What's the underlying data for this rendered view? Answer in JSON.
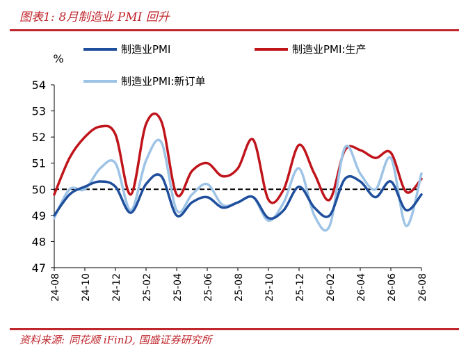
{
  "header": {
    "figure_label": "图表1:",
    "title": "8月制造业 PMI 回升"
  },
  "footer": {
    "source_label": "资料来源:",
    "source_text": "同花顺 iFinD, 国盛证券研究所"
  },
  "chart_data": {
    "type": "line",
    "unit_label": "%",
    "ylim": [
      47,
      54
    ],
    "yticks": [
      47,
      48,
      49,
      50,
      51,
      52,
      53,
      54
    ],
    "x": [
      "24-08",
      "24-09",
      "24-10",
      "24-11",
      "24-12",
      "25-01",
      "25-02",
      "25-03",
      "25-04",
      "25-05",
      "25-06",
      "25-07",
      "25-08",
      "25-09",
      "25-10",
      "25-11",
      "25-12",
      "26-01",
      "26-02",
      "26-03",
      "26-04",
      "26-05",
      "26-06",
      "26-07",
      "26-08"
    ],
    "xtick_labels": [
      "24-08",
      "24-10",
      "24-12",
      "25-02",
      "25-04",
      "25-06",
      "25-08",
      "25-10",
      "25-12",
      "26-02",
      "26-04",
      "26-06",
      "26-08"
    ],
    "reference_line": 50,
    "legend_position": "top",
    "series": [
      {
        "name": "制造业PMI",
        "color": "#1f4e9c",
        "values": [
          49.0,
          49.8,
          50.1,
          50.3,
          50.1,
          49.1,
          50.2,
          50.5,
          49.0,
          49.5,
          49.7,
          49.3,
          49.5,
          49.7,
          48.9,
          49.2,
          50.1,
          49.3,
          49.0,
          50.4,
          50.3,
          49.7,
          50.3,
          49.2,
          49.8
        ]
      },
      {
        "name": "制造业PMI:生产",
        "color": "#c0141b",
        "values": [
          49.8,
          51.2,
          52.0,
          52.4,
          52.1,
          49.8,
          52.5,
          52.6,
          49.8,
          50.7,
          51.0,
          50.5,
          50.8,
          51.9,
          49.6,
          50.0,
          51.7,
          50.6,
          49.6,
          51.5,
          51.5,
          51.2,
          51.4,
          49.9,
          50.4
        ]
      },
      {
        "name": "制造业PMI:新订单",
        "color": "#9dc3e6",
        "values": [
          48.9,
          50.0,
          50.0,
          50.8,
          51.0,
          49.2,
          51.1,
          51.8,
          49.2,
          49.8,
          50.2,
          49.4,
          49.5,
          49.7,
          48.8,
          49.5,
          50.8,
          49.0,
          48.6,
          51.6,
          50.6,
          50.0,
          51.2,
          48.6,
          50.6
        ]
      }
    ]
  }
}
